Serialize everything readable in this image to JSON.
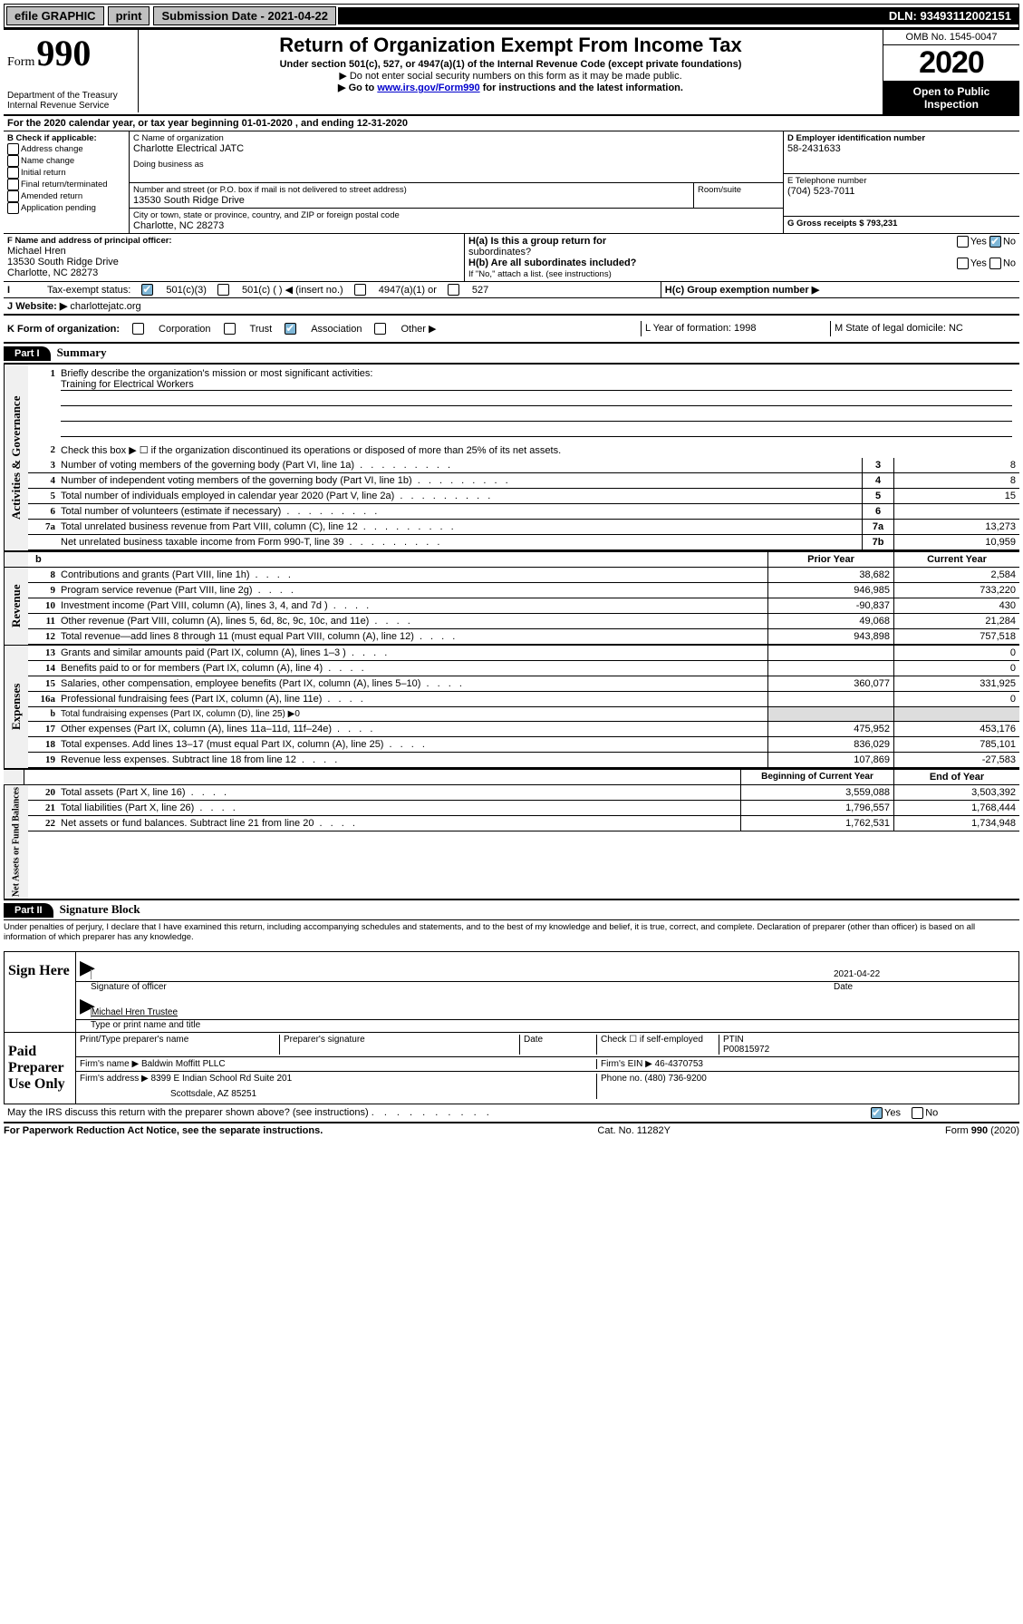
{
  "topbar": {
    "efile": "efile GRAPHIC",
    "print": "print",
    "sub_label": "Submission Date - 2021-04-22",
    "dln": "DLN: 93493112002151"
  },
  "header": {
    "form_word": "Form",
    "form_num": "990",
    "dept": "Department of the Treasury",
    "irs": "Internal Revenue Service",
    "title": "Return of Organization Exempt From Income Tax",
    "sub1": "Under section 501(c), 527, or 4947(a)(1) of the Internal Revenue Code (except private foundations)",
    "sub2": "▶ Do not enter social security numbers on this form as it may be made public.",
    "sub3a": "▶ Go to ",
    "sub3_link": "www.irs.gov/Form990",
    "sub3b": " for instructions and the latest information.",
    "omb": "OMB No. 1545-0047",
    "year": "2020",
    "open1": "Open to Public",
    "open2": "Inspection"
  },
  "sectionA": {
    "taxyear": "For the 2020 calendar year, or tax year beginning 01-01-2020     , and ending 12-31-2020",
    "b_label": "B Check if applicable:",
    "b_items": [
      "Address change",
      "Name change",
      "Initial return",
      "Final return/terminated",
      "Amended return",
      "Application pending"
    ],
    "c_label": "C Name of organization",
    "c_name": "Charlotte Electrical JATC",
    "dba_label": "Doing business as",
    "addr_label": "Number and street (or P.O. box if mail is not delivered to street address)",
    "addr": "13530 South Ridge Drive",
    "room_label": "Room/suite",
    "city_label": "City or town, state or province, country, and ZIP or foreign postal code",
    "city": "Charlotte, NC  28273",
    "d_label": "D Employer identification number",
    "d_val": "58-2431633",
    "e_label": "E Telephone number",
    "e_val": "(704) 523-7011",
    "g_label": "G Gross receipts $ 793,231",
    "f_label": "F  Name and address of principal officer:",
    "f_name": "Michael Hren",
    "f_addr1": "13530 South Ridge Drive",
    "f_addr2": "Charlotte, NC  28273",
    "ha_label": "H(a)  Is this a group return for",
    "ha_sub": "subordinates?",
    "hb_label": "H(b)  Are all subordinates included?",
    "hb_note": "If \"No,\" attach a list. (see instructions)",
    "hc_label": "H(c)  Group exemption number ▶",
    "yes": "Yes",
    "no": "No",
    "i_label": "Tax-exempt status:",
    "i_501c3": "501(c)(3)",
    "i_501c": "501(c) (  )   ◀ (insert no.)",
    "i_4947": "4947(a)(1) or",
    "i_527": "527",
    "j_label": "Website: ▶",
    "j_val": "charlottejatc.org",
    "k_label": "K Form of organization:",
    "k_corp": "Corporation",
    "k_trust": "Trust",
    "k_assoc": "Association",
    "k_other": "Other ▶",
    "l_label": "L Year of formation: 1998",
    "m_label": "M State of legal domicile: NC"
  },
  "part1": {
    "label": "Part I",
    "title": "Summary",
    "q1": "Briefly describe the organization's mission or most significant activities:",
    "q1ans": "Training for Electrical Workers",
    "q2": "Check this box ▶ ☐  if the organization discontinued its operations or disposed of more than 25% of its net assets.",
    "vlabel_a": "Activities & Governance",
    "vlabel_r": "Revenue",
    "vlabel_e": "Expenses",
    "vlabel_n": "Net Assets or Fund Balances",
    "prior": "Prior Year",
    "current": "Current Year",
    "begin": "Beginning of Current Year",
    "end": "End of Year",
    "lines_ag": [
      {
        "n": "3",
        "t": "Number of voting members of the governing body (Part VI, line 1a)",
        "k": "3",
        "v": "8"
      },
      {
        "n": "4",
        "t": "Number of independent voting members of the governing body (Part VI, line 1b)",
        "k": "4",
        "v": "8"
      },
      {
        "n": "5",
        "t": "Total number of individuals employed in calendar year 2020 (Part V, line 2a)",
        "k": "5",
        "v": "15"
      },
      {
        "n": "6",
        "t": "Total number of volunteers (estimate if necessary)",
        "k": "6",
        "v": ""
      },
      {
        "n": "7a",
        "t": "Total unrelated business revenue from Part VIII, column (C), line 12",
        "k": "7a",
        "v": "13,273"
      },
      {
        "n": "",
        "t": "Net unrelated business taxable income from Form 990-T, line 39",
        "k": "7b",
        "v": "10,959"
      }
    ],
    "lines_rev": [
      {
        "n": "8",
        "t": "Contributions and grants (Part VIII, line 1h)",
        "p": "38,682",
        "c": "2,584"
      },
      {
        "n": "9",
        "t": "Program service revenue (Part VIII, line 2g)",
        "p": "946,985",
        "c": "733,220"
      },
      {
        "n": "10",
        "t": "Investment income (Part VIII, column (A), lines 3, 4, and 7d )",
        "p": "-90,837",
        "c": "430"
      },
      {
        "n": "11",
        "t": "Other revenue (Part VIII, column (A), lines 5, 6d, 8c, 9c, 10c, and 11e)",
        "p": "49,068",
        "c": "21,284"
      },
      {
        "n": "12",
        "t": "Total revenue—add lines 8 through 11 (must equal Part VIII, column (A), line 12)",
        "p": "943,898",
        "c": "757,518"
      }
    ],
    "lines_exp": [
      {
        "n": "13",
        "t": "Grants and similar amounts paid (Part IX, column (A), lines 1–3 )",
        "p": "",
        "c": "0"
      },
      {
        "n": "14",
        "t": "Benefits paid to or for members (Part IX, column (A), line 4)",
        "p": "",
        "c": "0"
      },
      {
        "n": "15",
        "t": "Salaries, other compensation, employee benefits (Part IX, column (A), lines 5–10)",
        "p": "360,077",
        "c": "331,925"
      },
      {
        "n": "16a",
        "t": "Professional fundraising fees (Part IX, column (A), line 11e)",
        "p": "",
        "c": "0"
      },
      {
        "n": "b",
        "t": "Total fundraising expenses (Part IX, column (D), line 25) ▶0",
        "p": null,
        "c": null
      },
      {
        "n": "17",
        "t": "Other expenses (Part IX, column (A), lines 11a–11d, 11f–24e)",
        "p": "475,952",
        "c": "453,176"
      },
      {
        "n": "18",
        "t": "Total expenses. Add lines 13–17 (must equal Part IX, column (A), line 25)",
        "p": "836,029",
        "c": "785,101"
      },
      {
        "n": "19",
        "t": "Revenue less expenses. Subtract line 18 from line 12",
        "p": "107,869",
        "c": "-27,583"
      }
    ],
    "lines_net": [
      {
        "n": "20",
        "t": "Total assets (Part X, line 16)",
        "p": "3,559,088",
        "c": "3,503,392"
      },
      {
        "n": "21",
        "t": "Total liabilities (Part X, line 26)",
        "p": "1,796,557",
        "c": "1,768,444"
      },
      {
        "n": "22",
        "t": "Net assets or fund balances. Subtract line 21 from line 20",
        "p": "1,762,531",
        "c": "1,734,948"
      }
    ]
  },
  "part2": {
    "label": "Part II",
    "title": "Signature Block",
    "perjury": "Under penalties of perjury, I declare that I have examined this return, including accompanying schedules and statements, and to the best of my knowledge and belief, it is true, correct, and complete. Declaration of preparer (other than officer) is based on all information of which preparer has any knowledge.",
    "sign_here": "Sign Here",
    "sig_officer": "Signature of officer",
    "sig_date": "2021-04-22",
    "date_label": "Date",
    "typed_name": "Michael Hren  Trustee",
    "typed_label": "Type or print name and title",
    "paid_label": "Paid Preparer Use Only",
    "prep_name_label": "Print/Type preparer's name",
    "prep_sig_label": "Preparer's signature",
    "prep_date_label": "Date",
    "check_self": "Check ☐ if self-employed",
    "ptin_label": "PTIN",
    "ptin": "P00815972",
    "firm_name_label": "Firm's name    ▶",
    "firm_name": "Baldwin Moffitt PLLC",
    "firm_ein_label": "Firm's EIN ▶",
    "firm_ein": "46-4370753",
    "firm_addr_label": "Firm's address ▶",
    "firm_addr1": "8399 E Indian School Rd Suite 201",
    "firm_addr2": "Scottsdale, AZ  85251",
    "phone_label": "Phone no.",
    "phone": "(480) 736-9200",
    "discuss": "May the IRS discuss this return with the preparer shown above? (see instructions)",
    "yes": "Yes",
    "no": "No"
  },
  "footer": {
    "pra": "For Paperwork Reduction Act Notice, see the separate instructions.",
    "cat": "Cat. No. 11282Y",
    "form": "Form 990 (2020)"
  }
}
